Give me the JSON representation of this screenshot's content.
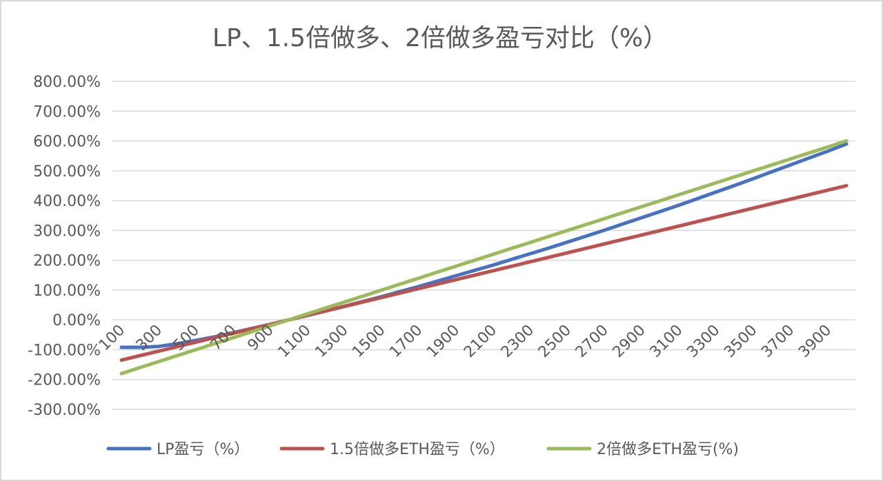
{
  "chart_data": {
    "type": "line",
    "title": "LP、1.5倍做多、2倍做多盈亏对比（%）",
    "xlabel": "",
    "ylabel": "",
    "ylim": [
      -300,
      800
    ],
    "y_tick_values": [
      800,
      700,
      600,
      500,
      400,
      300,
      200,
      100,
      0,
      -100,
      -200,
      -300
    ],
    "y_tick_labels": [
      "800.00%",
      "700.00%",
      "600.00%",
      "500.00%",
      "400.00%",
      "300.00%",
      "200.00%",
      "100.00%",
      "0.00%",
      "-100.00%",
      "-200.00%",
      "-300.00%"
    ],
    "x_tick_labels": [
      "100",
      "300",
      "500",
      "700",
      "900",
      "1100",
      "1300",
      "1500",
      "1700",
      "1900",
      "2100",
      "2300",
      "2500",
      "2700",
      "2900",
      "3100",
      "3300",
      "3500",
      "3700",
      "3900"
    ],
    "grid": true,
    "legend_position": "bottom",
    "x": [
      100,
      200,
      300,
      400,
      500,
      600,
      700,
      800,
      900,
      1000,
      1100,
      1200,
      1300,
      1400,
      1500,
      1600,
      1700,
      1800,
      1900,
      2000,
      2100,
      2200,
      2300,
      2400,
      2500,
      2600,
      2700,
      2800,
      2900,
      3000,
      3100,
      3200,
      3300,
      3400,
      3500,
      3600,
      3700,
      3800,
      3900,
      4000
    ],
    "series": [
      {
        "name": "LP盈亏（%）",
        "color": "#4472c4",
        "values": [
          -92,
          -92,
          -89,
          -80,
          -69,
          -57,
          -43,
          -29,
          -15,
          0,
          15,
          30,
          46,
          62,
          78,
          95,
          112,
          130,
          148,
          166,
          184,
          203,
          222,
          241,
          261,
          281,
          301,
          322,
          343,
          364,
          385,
          407,
          429,
          451,
          474,
          497,
          520,
          543,
          566,
          590
        ]
      },
      {
        "name": "1.5倍做多ETH盈亏（%）",
        "color": "#c0504d",
        "values": [
          -135,
          -120,
          -105,
          -90,
          -75,
          -60,
          -45,
          -30,
          -15,
          0,
          15,
          30,
          45,
          60,
          75,
          90,
          105,
          120,
          135,
          150,
          165,
          180,
          195,
          210,
          225,
          240,
          255,
          270,
          285,
          300,
          315,
          330,
          345,
          360,
          375,
          390,
          405,
          420,
          435,
          450
        ]
      },
      {
        "name": "2倍做多ETH盈亏(%)",
        "color": "#9bbb59",
        "values": [
          -180,
          -160,
          -140,
          -120,
          -100,
          -80,
          -60,
          -40,
          -20,
          0,
          20,
          40,
          60,
          80,
          100,
          120,
          140,
          160,
          180,
          200,
          220,
          240,
          260,
          280,
          300,
          320,
          340,
          360,
          380,
          400,
          420,
          440,
          460,
          480,
          500,
          520,
          540,
          560,
          580,
          600
        ]
      }
    ]
  }
}
